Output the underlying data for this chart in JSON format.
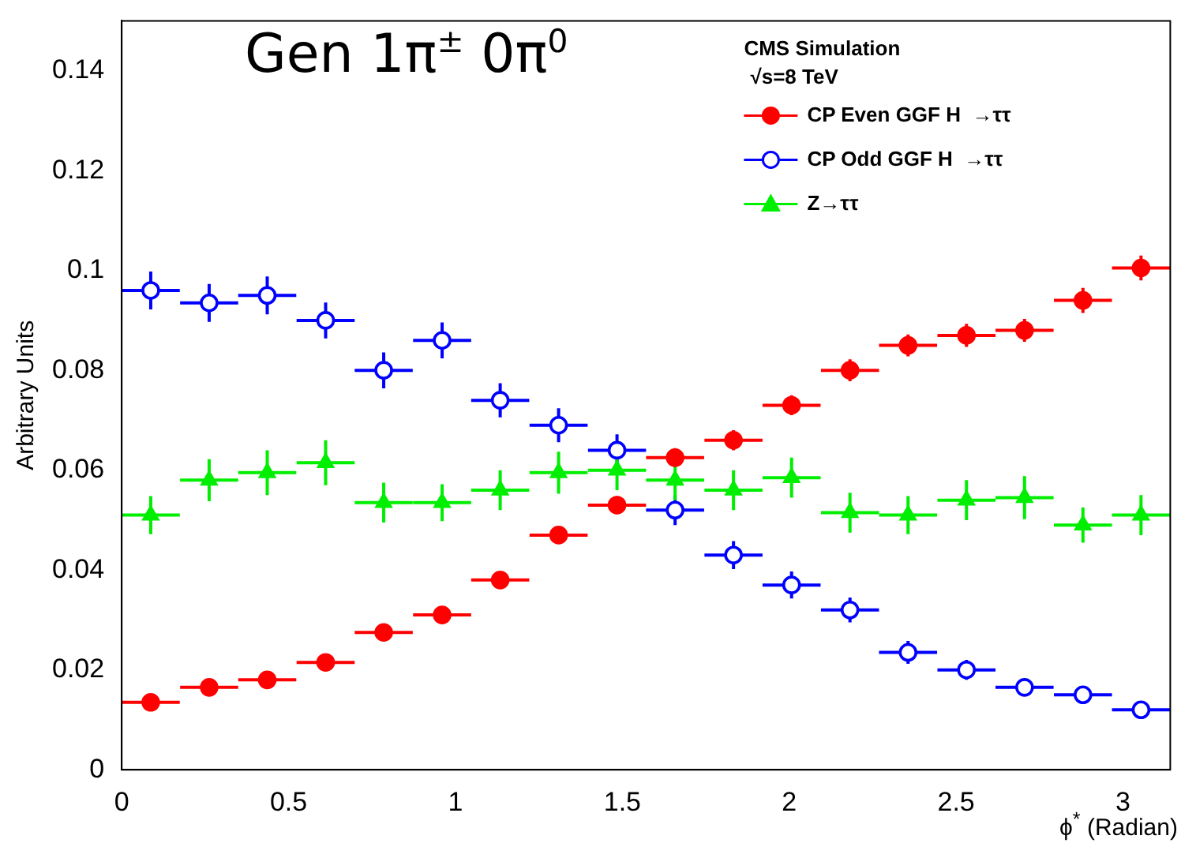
{
  "chart_data": {
    "type": "scatter",
    "legend_title": "CMS Simulation",
    "subtitle": "√s=8 TeV",
    "annotations": [
      "Gen 1π$^{±}$ 0π$^{0}$"
    ],
    "xlabel": "ϕ$^{*}$ (Radian)",
    "ylabel": "Arbitrary Units",
    "x": [
      0.087,
      0.262,
      0.436,
      0.611,
      0.785,
      0.96,
      1.134,
      1.309,
      1.484,
      1.658,
      1.833,
      2.007,
      2.182,
      2.356,
      2.531,
      2.705,
      2.88,
      3.054
    ],
    "xlim": [
      0,
      3.1416
    ],
    "xticks": [
      0,
      0.5,
      1,
      1.5,
      2,
      2.5,
      3
    ],
    "ylim": [
      0,
      0.15
    ],
    "yticks": [
      0,
      0.02,
      0.04,
      0.06,
      0.08,
      0.1,
      0.12,
      0.14
    ],
    "grid": false,
    "legend": "top right",
    "series": [
      {
        "name": "CP Even GGF H  →ττ",
        "color": "#ff0000",
        "marker": "circle",
        "values": [
          0.0135,
          0.0165,
          0.018,
          0.0215,
          0.0275,
          0.031,
          0.038,
          0.047,
          0.053,
          0.0625,
          0.066,
          0.073,
          0.08,
          0.085,
          0.087,
          0.088,
          0.094,
          0.1005
        ],
        "errors": [
          0.0012,
          0.0012,
          0.0012,
          0.0014,
          0.0014,
          0.0015,
          0.0016,
          0.0017,
          0.0018,
          0.0019,
          0.002,
          0.002,
          0.0022,
          0.0022,
          0.0023,
          0.0023,
          0.0025,
          0.0025
        ],
        "xerrors": [
          0.087,
          0.087,
          0.087,
          0.087,
          0.087,
          0.087,
          0.087,
          0.087,
          0.087,
          0.087,
          0.087,
          0.087,
          0.087,
          0.087,
          0.087,
          0.087,
          0.087,
          0.087
        ]
      },
      {
        "name": "CP Odd GGF H  →ττ",
        "color": "#0000ff",
        "marker": "circle-open",
        "values": [
          0.096,
          0.0935,
          0.095,
          0.09,
          0.08,
          0.086,
          0.074,
          0.069,
          0.064,
          0.052,
          0.043,
          0.037,
          0.032,
          0.0235,
          0.02,
          0.0165,
          0.015,
          0.012
        ],
        "errors": [
          0.0038,
          0.0038,
          0.0038,
          0.0036,
          0.0036,
          0.0036,
          0.0034,
          0.0034,
          0.0032,
          0.003,
          0.0028,
          0.0027,
          0.0025,
          0.0023,
          0.002,
          0.0017,
          0.0015,
          0.0012
        ],
        "xerrors": [
          0.087,
          0.087,
          0.087,
          0.087,
          0.087,
          0.087,
          0.087,
          0.087,
          0.087,
          0.087,
          0.087,
          0.087,
          0.087,
          0.087,
          0.087,
          0.087,
          0.087,
          0.087
        ]
      },
      {
        "name": "Z→ττ",
        "color": "#00ee00",
        "marker": "triangle",
        "values": [
          0.051,
          0.058,
          0.0595,
          0.0615,
          0.0535,
          0.0535,
          0.056,
          0.0595,
          0.06,
          0.058,
          0.056,
          0.0585,
          0.0515,
          0.051,
          0.054,
          0.0545,
          0.049,
          0.051
        ],
        "errors": [
          0.0038,
          0.0042,
          0.0045,
          0.0045,
          0.004,
          0.0037,
          0.004,
          0.0042,
          0.004,
          0.004,
          0.004,
          0.004,
          0.004,
          0.0038,
          0.004,
          0.0043,
          0.0035,
          0.004
        ],
        "xerrors": [
          0.087,
          0.087,
          0.087,
          0.087,
          0.087,
          0.087,
          0.087,
          0.087,
          0.087,
          0.087,
          0.087,
          0.087,
          0.087,
          0.087,
          0.087,
          0.087,
          0.087,
          0.087
        ]
      }
    ]
  }
}
